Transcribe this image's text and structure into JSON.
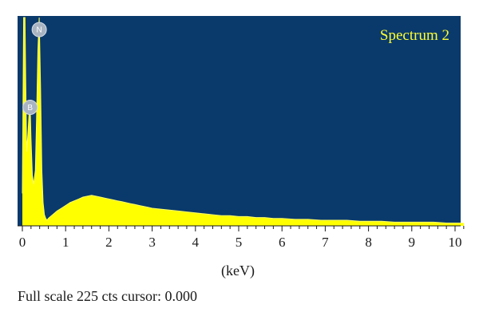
{
  "footer": {
    "full_scale_label": "Full scale 225 cts",
    "cursor_label": "cursor: 0.000"
  },
  "chart_data": {
    "type": "area",
    "title": "Spectrum 2",
    "xlabel": "(keV)",
    "ylabel": "",
    "xlim": [
      0,
      10.2
    ],
    "ylim": [
      0,
      225
    ],
    "grid": false,
    "colors": {
      "plot_background": "#0a3a6b",
      "spectrum_fill": "#ffff00",
      "title": "#ffff33",
      "marker": "#a9b4c2"
    },
    "xticks": [
      0,
      1,
      2,
      3,
      4,
      5,
      6,
      7,
      8,
      9,
      10
    ],
    "minor_tick_step": 0.2,
    "markers": [
      {
        "label": "N",
        "x": 0.39,
        "y": 212
      },
      {
        "label": "B",
        "x": 0.18,
        "y": 128
      }
    ],
    "series": [
      {
        "x": [
          0,
          0.03,
          0.06,
          0.08,
          0.1,
          0.13,
          0.16,
          0.18,
          0.2,
          0.23,
          0.26,
          0.3,
          0.33,
          0.36,
          0.39,
          0.42,
          0.45,
          0.48,
          0.51,
          0.54,
          0.57,
          0.6,
          0.65,
          0.7,
          0.8,
          0.9,
          1.0,
          1.1,
          1.2,
          1.3,
          1.4,
          1.5,
          1.6,
          1.7,
          1.8,
          1.9,
          2.0,
          2.1,
          2.2,
          2.3,
          2.4,
          2.5,
          2.6,
          2.7,
          2.8,
          2.9,
          3.0,
          3.2,
          3.4,
          3.6,
          3.8,
          4.0,
          4.2,
          4.4,
          4.6,
          4.8,
          5.0,
          5.2,
          5.4,
          5.6,
          5.8,
          6.0,
          6.3,
          6.6,
          6.9,
          7.2,
          7.5,
          7.8,
          8.0,
          8.3,
          8.6,
          8.9,
          9.2,
          9.5,
          9.8,
          10.0,
          10.2
        ],
        "y": [
          35,
          225,
          225,
          150,
          80,
          100,
          125,
          128,
          95,
          55,
          45,
          60,
          120,
          190,
          225,
          150,
          60,
          25,
          12,
          8,
          6,
          8,
          10,
          12,
          16,
          19,
          22,
          25,
          27,
          29,
          31,
          32,
          33,
          32,
          31,
          30,
          29,
          28,
          27,
          26,
          25,
          24,
          23,
          22,
          21,
          20,
          19,
          18,
          17,
          16,
          15,
          14,
          13,
          12,
          11,
          11,
          10,
          10,
          9,
          9,
          8,
          8,
          7,
          7,
          6,
          6,
          6,
          5,
          5,
          5,
          4,
          4,
          4,
          4,
          3,
          3,
          3
        ]
      }
    ]
  }
}
